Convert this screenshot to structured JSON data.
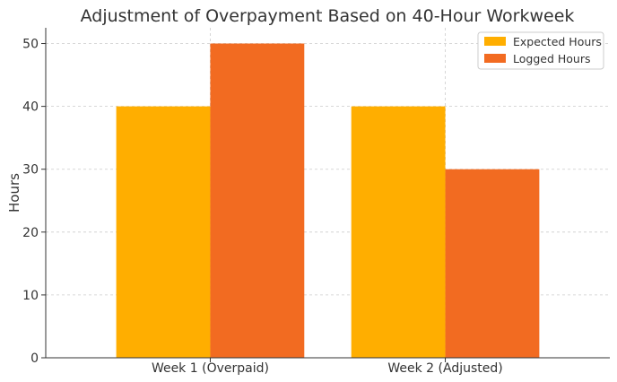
{
  "chart_data": {
    "type": "bar",
    "title": "Adjustment of Overpayment Based on 40-Hour Workweek",
    "xlabel": "",
    "ylabel": "Hours",
    "categories": [
      "Week 1 (Overpaid)",
      "Week 2 (Adjusted)"
    ],
    "series": [
      {
        "name": "Expected Hours",
        "values": [
          40,
          40
        ],
        "color": "#FFAE00"
      },
      {
        "name": "Logged Hours",
        "values": [
          50,
          30
        ],
        "color": "#F26B21"
      }
    ],
    "ylim": [
      0,
      52.5
    ],
    "yticks": [
      0,
      10,
      20,
      30,
      40,
      50
    ],
    "grid": true,
    "legend_position": "top-right"
  }
}
